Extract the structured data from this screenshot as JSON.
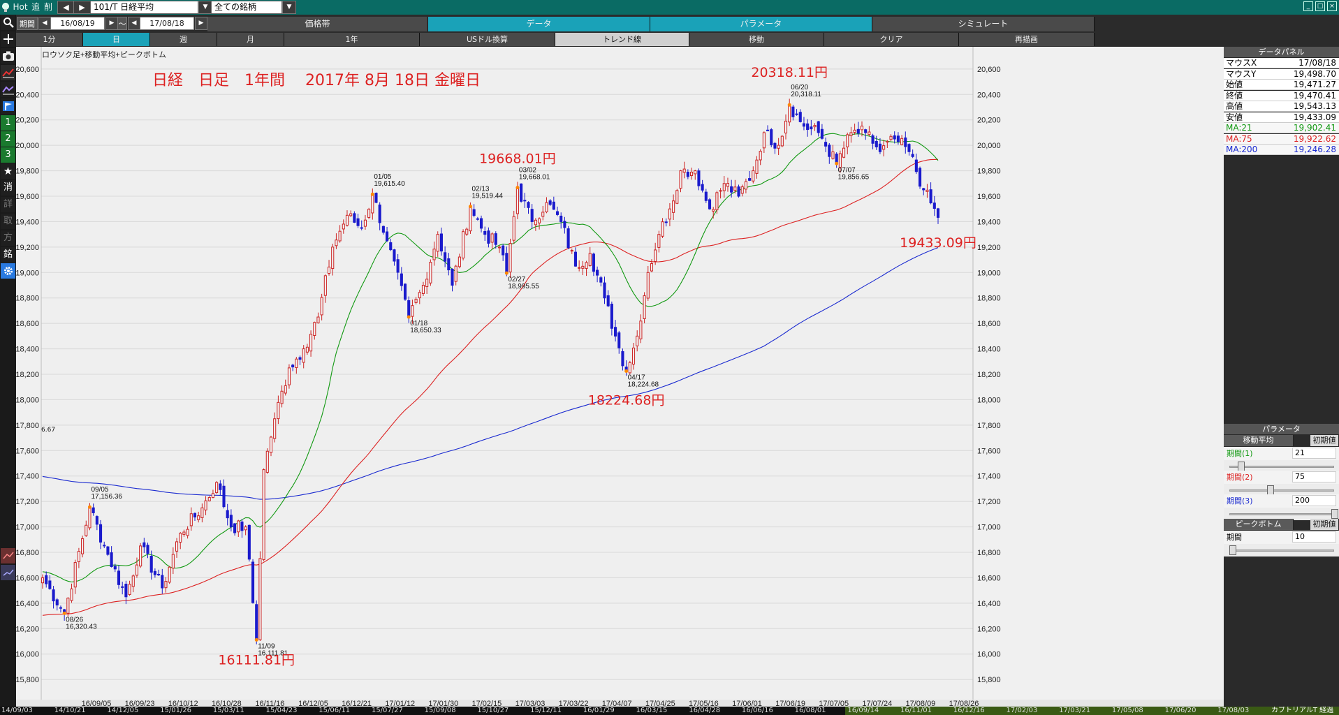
{
  "titlebar": {
    "hot": "Hot",
    "add": "追",
    "delete": "削",
    "symbol": "101/T 日経平均",
    "filter": "全ての銘柄"
  },
  "row2": {
    "period_label": "期間",
    "date_from": "16/08/19",
    "tilde": "～",
    "date_to": "17/08/18",
    "tabs": [
      "価格帯",
      "データ",
      "パラメータ",
      "シミュレート"
    ]
  },
  "row3": {
    "tabs": [
      "1分",
      "日",
      "週",
      "月",
      "1年",
      "USドル換算",
      "トレンド線",
      "移動",
      "クリア",
      "再描画"
    ]
  },
  "lefttoolbar": {
    "labels": [
      "1",
      "2",
      "3",
      "消",
      "詳",
      "取",
      "方",
      "銘"
    ]
  },
  "chart_data": {
    "type": "candlestick",
    "legend_text": "ロウソク足+移動平均+ピークボトム",
    "title": "日経　日足　1年間　 2017年 8月 18日 金曜日",
    "ylim": [
      15700,
      20700
    ],
    "yticks": [
      15800,
      16000,
      16200,
      16400,
      16600,
      16800,
      17000,
      17200,
      17400,
      17600,
      17800,
      18000,
      18200,
      18400,
      18600,
      18800,
      19000,
      19200,
      19400,
      19600,
      19800,
      20000,
      20200,
      20400,
      20600
    ],
    "ytick_labels": [
      "15,800",
      "16,000",
      "16,200",
      "16,400",
      "16,600",
      "16,800",
      "17,000",
      "17,200",
      "17,400",
      "17,600",
      "17,800",
      "18,000",
      "18,200",
      "18,400",
      "18,600",
      "18,800",
      "19,000",
      "19,200",
      "19,400",
      "19,600",
      "19,800",
      "20,000",
      "20,200",
      "20,400",
      "20,600"
    ],
    "xlabels": [
      "16/09/05",
      "16/09/23",
      "16/10/12",
      "16/10/28",
      "16/11/16",
      "16/12/05",
      "16/12/21",
      "17/01/12",
      "17/01/30",
      "17/02/15",
      "17/03/03",
      "17/03/22",
      "17/04/07",
      "17/04/25",
      "17/05/16",
      "17/06/01",
      "17/06/19",
      "17/07/05",
      "17/07/24",
      "17/08/09",
      "17/08/26"
    ],
    "ma_colors": {
      "ma21": "#119911",
      "ma75": "#dd2222",
      "ma200": "#1a2ad0"
    },
    "up_color": "#cc2222",
    "down_color": "#1a1acc",
    "peaks": [
      {
        "date": "08/26",
        "value": "16,320.43",
        "v": 16320.43,
        "type": "bottom",
        "i": 6
      },
      {
        "date": "09/05",
        "value": "17,156.36",
        "v": 17156.36,
        "type": "peak",
        "i": 13
      },
      {
        "date": "11/09",
        "value": "16,111.81",
        "v": 16111.81,
        "type": "bottom",
        "i": 59
      },
      {
        "date": "01/05",
        "value": "19,615.40",
        "v": 19615.4,
        "type": "peak",
        "i": 91
      },
      {
        "date": "01/18",
        "value": "18,650.33",
        "v": 18650.33,
        "type": "bottom",
        "i": 101
      },
      {
        "date": "02/13",
        "value": "19,519.44",
        "v": 19519.44,
        "type": "peak",
        "i": 118
      },
      {
        "date": "02/27",
        "value": "18,995.55",
        "v": 18995.55,
        "type": "bottom",
        "i": 128
      },
      {
        "date": "03/02",
        "value": "19,668.01",
        "v": 19668.01,
        "type": "peak",
        "i": 131
      },
      {
        "date": "04/17",
        "value": "18,224.68",
        "v": 18224.68,
        "type": "bottom",
        "i": 161
      },
      {
        "date": "06/20",
        "value": "20,318.11",
        "v": 20318.11,
        "type": "peak",
        "i": 206
      },
      {
        "date": "07/07",
        "value": "19,856.65",
        "v": 19856.65,
        "type": "bottom",
        "i": 219
      }
    ],
    "red_labels": [
      {
        "text": "16111.81円",
        "i": 59,
        "v": 15920
      },
      {
        "text": "19668.01円",
        "i": 131,
        "v": 19860
      },
      {
        "text": "18224.68円",
        "i": 161,
        "v": 17960
      },
      {
        "text": "20318.11円",
        "i": 206,
        "v": 20540
      },
      {
        "text": "19433.09円",
        "i": 247,
        "v": 19200
      }
    ],
    "cut_label": "6.67",
    "control_points": [
      [
        0,
        16600
      ],
      [
        6,
        16320
      ],
      [
        13,
        17156
      ],
      [
        17,
        16850
      ],
      [
        23,
        16450
      ],
      [
        27,
        16850
      ],
      [
        33,
        16520
      ],
      [
        38,
        16950
      ],
      [
        44,
        17150
      ],
      [
        48,
        17350
      ],
      [
        52,
        17000
      ],
      [
        56,
        17000
      ],
      [
        59,
        16111
      ],
      [
        61,
        17450
      ],
      [
        64,
        17850
      ],
      [
        68,
        18250
      ],
      [
        72,
        18400
      ],
      [
        76,
        18650
      ],
      [
        80,
        19200
      ],
      [
        84,
        19450
      ],
      [
        88,
        19350
      ],
      [
        91,
        19615
      ],
      [
        95,
        19250
      ],
      [
        101,
        18650
      ],
      [
        105,
        18900
      ],
      [
        109,
        19300
      ],
      [
        113,
        18900
      ],
      [
        118,
        19519
      ],
      [
        122,
        19300
      ],
      [
        126,
        19200
      ],
      [
        128,
        18995
      ],
      [
        131,
        19668
      ],
      [
        135,
        19400
      ],
      [
        139,
        19550
      ],
      [
        143,
        19400
      ],
      [
        147,
        19050
      ],
      [
        151,
        19150
      ],
      [
        155,
        18800
      ],
      [
        158,
        18500
      ],
      [
        161,
        18224
      ],
      [
        164,
        18500
      ],
      [
        167,
        19000
      ],
      [
        170,
        19300
      ],
      [
        173,
        19500
      ],
      [
        176,
        19800
      ],
      [
        180,
        19800
      ],
      [
        184,
        19500
      ],
      [
        188,
        19700
      ],
      [
        192,
        19600
      ],
      [
        196,
        19800
      ],
      [
        199,
        20100
      ],
      [
        203,
        20000
      ],
      [
        206,
        20318
      ],
      [
        210,
        20150
      ],
      [
        214,
        20100
      ],
      [
        219,
        19856
      ],
      [
        223,
        20100
      ],
      [
        227,
        20100
      ],
      [
        231,
        19950
      ],
      [
        235,
        20050
      ],
      [
        239,
        19950
      ],
      [
        243,
        19650
      ],
      [
        247,
        19433
      ]
    ]
  },
  "data_panel": {
    "header": "データパネル",
    "rows": [
      {
        "k": "マウスX",
        "v": "17/08/18",
        "color": "#000000"
      },
      {
        "k": "マウスY",
        "v": "19,498.70",
        "color": "#000000"
      },
      {
        "k": "始値",
        "v": "19,471.27",
        "color": "#000000"
      },
      {
        "k": "終値",
        "v": "19,470.41",
        "color": "#000000"
      },
      {
        "k": "高値",
        "v": "19,543.13",
        "color": "#000000"
      },
      {
        "k": "安値",
        "v": "19,433.09",
        "color": "#000000"
      },
      {
        "k": "MA:21",
        "v": "19,902.41",
        "color": "#119911"
      },
      {
        "k": "MA:75",
        "v": "19,922.62",
        "color": "#dd2222"
      },
      {
        "k": "MA:200",
        "v": "19,246.28",
        "color": "#1a2ad0"
      }
    ]
  },
  "param_panel": {
    "header": "パラメータ",
    "ma_header": "移動平均",
    "ma_reset": "初期値",
    "ma_rows": [
      {
        "k": "期間(1)",
        "v": "21",
        "color": "#119911",
        "frac": 0.08
      },
      {
        "k": "期間(2)",
        "v": "75",
        "color": "#dd2222",
        "frac": 0.37
      },
      {
        "k": "期間(3)",
        "v": "200",
        "color": "#1a2ad0",
        "frac": 1.0
      }
    ],
    "pb_header": "ピークボトム",
    "pb_reset": "初期値",
    "pb_row": {
      "k": "期間",
      "v": "10",
      "frac": 0.0
    }
  },
  "bottom_strip": {
    "dates": [
      "14/09/03",
      "14/10/21",
      "14/12/05",
      "15/01/26",
      "15/03/11",
      "15/04/23",
      "15/06/11",
      "15/07/27",
      "15/09/08",
      "15/10/27",
      "15/12/11",
      "16/01/29",
      "16/03/15",
      "16/04/28",
      "16/06/16",
      "16/08/01",
      "16/09/14",
      "16/11/01",
      "16/12/16",
      "17/02/03",
      "17/03/21",
      "17/05/08",
      "17/06/20",
      "17/08/03"
    ],
    "right_text": "カブトリアルT 経過"
  }
}
